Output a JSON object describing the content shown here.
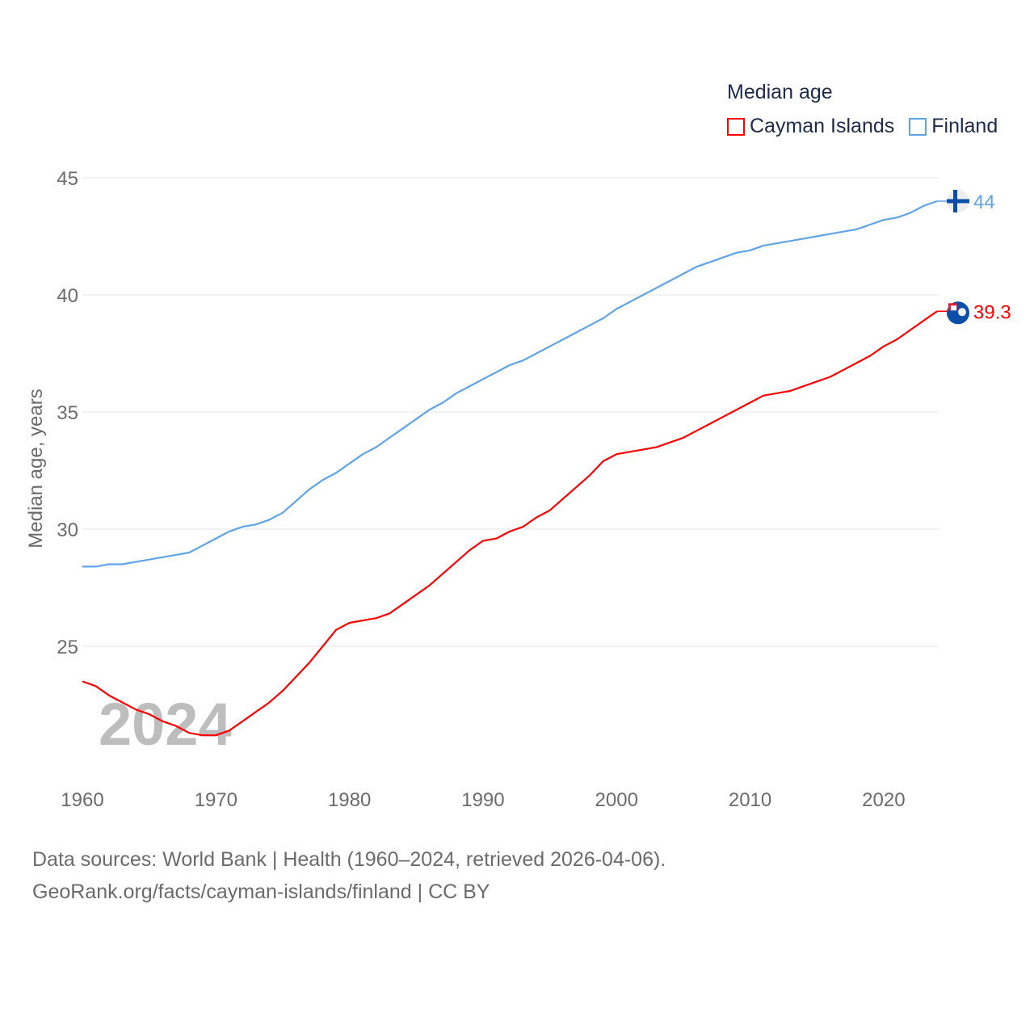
{
  "chart_data": {
    "type": "line",
    "title": "Median age",
    "xlabel": "",
    "ylabel": "Median age, years",
    "xlim": [
      1960,
      2024
    ],
    "ylim": [
      20,
      45
    ],
    "xticks": [
      1960,
      1970,
      1980,
      1990,
      2000,
      2010,
      2020
    ],
    "yticks": [
      25,
      30,
      35,
      40,
      45
    ],
    "grid": true,
    "legend_placement": "top-right",
    "year_watermark": "2024",
    "x": [
      1960,
      1961,
      1962,
      1963,
      1964,
      1965,
      1966,
      1967,
      1968,
      1969,
      1970,
      1971,
      1972,
      1973,
      1974,
      1975,
      1976,
      1977,
      1978,
      1979,
      1980,
      1981,
      1982,
      1983,
      1984,
      1985,
      1986,
      1987,
      1988,
      1989,
      1990,
      1991,
      1992,
      1993,
      1994,
      1995,
      1996,
      1997,
      1998,
      1999,
      2000,
      2001,
      2002,
      2003,
      2004,
      2005,
      2006,
      2007,
      2008,
      2009,
      2010,
      2011,
      2012,
      2013,
      2014,
      2015,
      2016,
      2017,
      2018,
      2019,
      2020,
      2021,
      2022,
      2023,
      2024
    ],
    "series": [
      {
        "name": "Cayman Islands",
        "color": "#ff0000",
        "end_label": "39.3",
        "values": [
          23.5,
          23.3,
          22.9,
          22.6,
          22.3,
          22.1,
          21.8,
          21.6,
          21.3,
          21.2,
          21.2,
          21.4,
          21.8,
          22.2,
          22.6,
          23.1,
          23.7,
          24.3,
          25.0,
          25.7,
          26.0,
          26.1,
          26.2,
          26.4,
          26.8,
          27.2,
          27.6,
          28.1,
          28.6,
          29.1,
          29.5,
          29.6,
          29.9,
          30.1,
          30.5,
          30.8,
          31.3,
          31.8,
          32.3,
          32.9,
          33.2,
          33.3,
          33.4,
          33.5,
          33.7,
          33.9,
          34.2,
          34.5,
          34.8,
          35.1,
          35.4,
          35.7,
          35.8,
          35.9,
          36.1,
          36.3,
          36.5,
          36.8,
          37.1,
          37.4,
          37.8,
          38.1,
          38.5,
          38.9,
          39.3
        ]
      },
      {
        "name": "Finland",
        "color": "#5fa4e8",
        "end_label": "44",
        "values": [
          28.4,
          28.4,
          28.5,
          28.5,
          28.6,
          28.7,
          28.8,
          28.9,
          29.0,
          29.3,
          29.6,
          29.9,
          30.1,
          30.2,
          30.4,
          30.7,
          31.2,
          31.7,
          32.1,
          32.4,
          32.8,
          33.2,
          33.5,
          33.9,
          34.3,
          34.7,
          35.1,
          35.4,
          35.8,
          36.1,
          36.4,
          36.7,
          37.0,
          37.2,
          37.5,
          37.8,
          38.1,
          38.4,
          38.7,
          39.0,
          39.4,
          39.7,
          40.0,
          40.3,
          40.6,
          40.9,
          41.2,
          41.4,
          41.6,
          41.8,
          41.9,
          42.1,
          42.2,
          42.3,
          42.4,
          42.5,
          42.6,
          42.7,
          42.8,
          43.0,
          43.2,
          43.3,
          43.5,
          43.8,
          44.0
        ]
      }
    ]
  },
  "footer": {
    "line1": "Data sources: World Bank | Health (1960–2024, retrieved 2026-04-06).",
    "line2": "GeoRank.org/facts/cayman-islands/finland | CC BY"
  }
}
